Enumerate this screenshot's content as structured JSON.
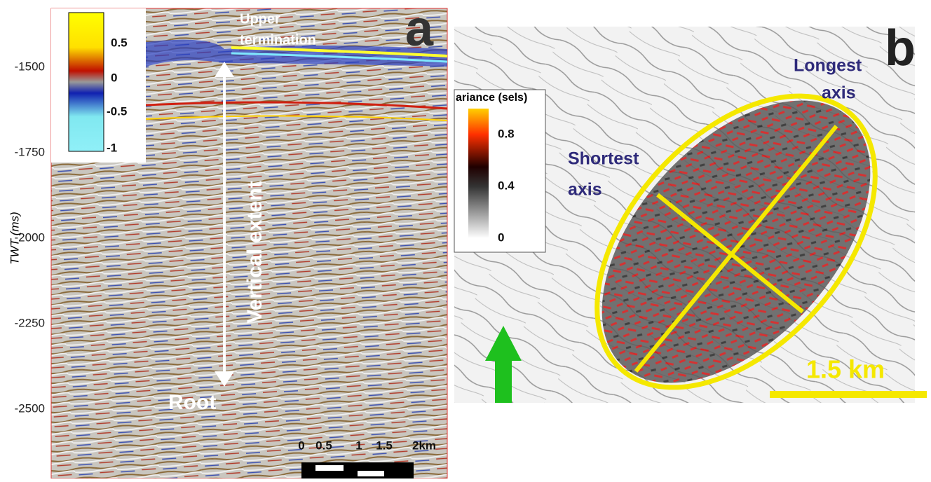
{
  "panel_a": {
    "letter": "a",
    "axis_label": "TWT (ms)",
    "yticks": [
      -1500,
      -1750,
      -2000,
      -2250,
      -2500
    ],
    "colorbar_ticks": [
      0.5,
      0,
      -0.5,
      -1
    ],
    "annotations": {
      "upper_termination": [
        "Upper",
        "termination"
      ],
      "vertical_extent": "Vertical extent",
      "root": "Root"
    },
    "scale_bar": [
      "0",
      "0.5",
      "1",
      "1.5",
      "2km"
    ]
  },
  "panel_b": {
    "letter": "b",
    "colorbar_title": "ariance (sels)",
    "colorbar_ticks": [
      0.8,
      0.4,
      0
    ],
    "annotations": {
      "longest_axis": [
        "Longest",
        "axis"
      ],
      "shortest_axis": [
        "Shortest",
        "axis"
      ]
    },
    "scale_bar": "1.5 km"
  }
}
